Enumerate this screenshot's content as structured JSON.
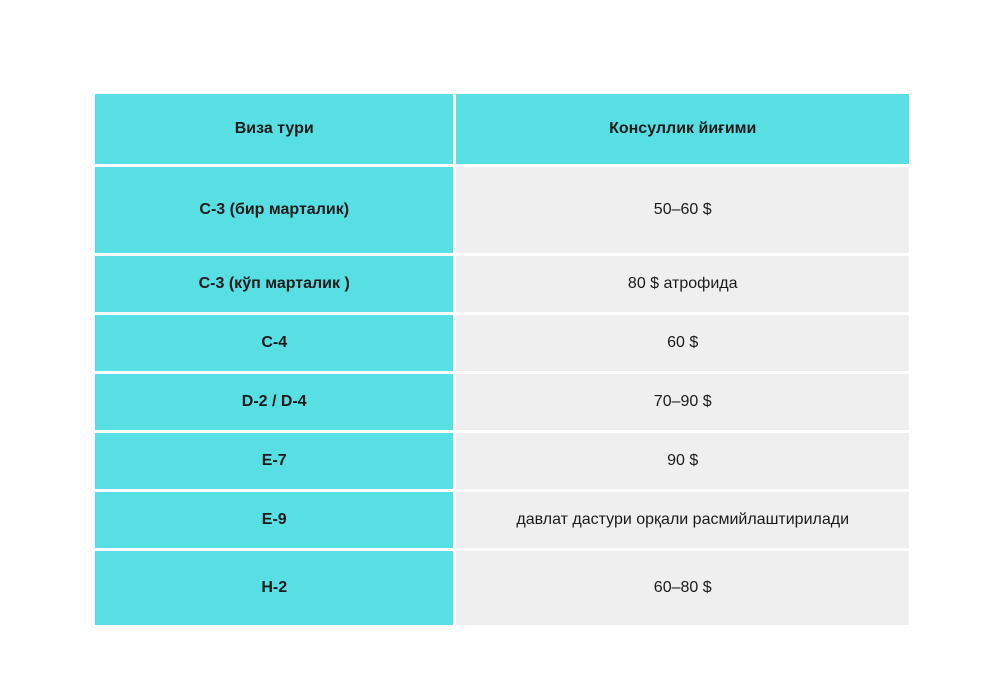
{
  "colors": {
    "accent": "#58dfe4",
    "row-bg": "#efefef",
    "text": "#1a1a1a",
    "background": "#ffffff"
  },
  "table": {
    "headers": [
      "Виза тури",
      "Консуллик йиғими"
    ],
    "rows": [
      {
        "type": "C-3 (бир марталик)",
        "fee": "50–60 $"
      },
      {
        "type": "C-3 (кўп марталик )",
        "fee": "80 $ атрофида"
      },
      {
        "type": "C-4",
        "fee": "60 $"
      },
      {
        "type": "D-2 / D-4",
        "fee": "70–90 $"
      },
      {
        "type": "E-7",
        "fee": "90 $"
      },
      {
        "type": "E-9",
        "fee": "давлат дастури орқали расмийлаштирилади"
      },
      {
        "type": "H-2",
        "fee": "60–80 $"
      }
    ]
  },
  "chart_data": {
    "type": "table",
    "title": "",
    "columns": [
      "Виза тури",
      "Консуллик йиғими"
    ],
    "rows": [
      [
        "C-3 (бир марталик)",
        "50–60 $"
      ],
      [
        "C-3 (кўп марталик )",
        "80 $ атрофида"
      ],
      [
        "C-4",
        "60 $"
      ],
      [
        "D-2 / D-4",
        "70–90 $"
      ],
      [
        "E-7",
        "90 $"
      ],
      [
        "E-9",
        "давлат дастури орқали расмийлаштирилади"
      ],
      [
        "H-2",
        "60–80 $"
      ]
    ]
  }
}
